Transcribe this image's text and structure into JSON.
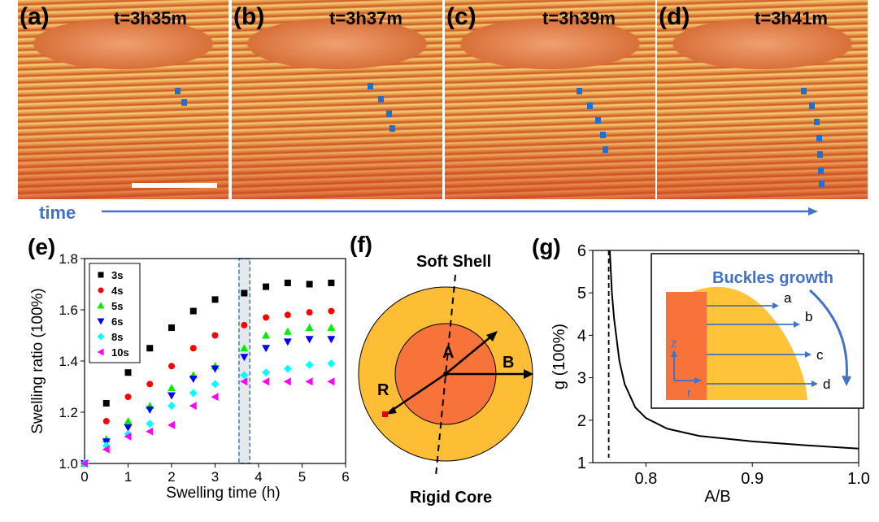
{
  "photos": [
    {
      "label": "(a)",
      "time": "t=3h35m"
    },
    {
      "label": "(b)",
      "time": "t=3h37m"
    },
    {
      "label": "(c)",
      "time": "t=3h39m"
    },
    {
      "label": "(d)",
      "time": "t=3h41m"
    }
  ],
  "time_arrow": {
    "label": "time",
    "color": "#4472c4"
  },
  "panel_f": {
    "label": "(f)",
    "soft_shell": "Soft Shell",
    "rigid_core": "Rigid Core",
    "A": "A",
    "B": "B",
    "R": "R",
    "shell_color": "#fdbd35",
    "core_color": "#f7733a"
  },
  "chart_data": [
    {
      "panel": "(e)",
      "type": "scatter",
      "xlabel": "Swelling time (h)",
      "ylabel": "Swelling ratio (100%)",
      "xlim": [
        0,
        6
      ],
      "ylim": [
        1.0,
        1.8
      ],
      "xticks": [
        "0",
        "1",
        "2",
        "3",
        "4",
        "5",
        "6"
      ],
      "yticks": [
        "1.0",
        "1.2",
        "1.4",
        "1.6",
        "1.8"
      ],
      "legend": "top-left",
      "highlight_band": [
        3.55,
        3.8
      ],
      "x": [
        0,
        0.5,
        1,
        1.5,
        2,
        2.5,
        3,
        3.67,
        4.17,
        4.67,
        5.17,
        5.67
      ],
      "series": [
        {
          "name": "3s",
          "marker": "square",
          "color": "#000000",
          "values": [
            1.0,
            1.235,
            1.355,
            1.45,
            1.53,
            1.595,
            1.64,
            1.665,
            1.69,
            1.705,
            1.7,
            1.705
          ]
        },
        {
          "name": "4s",
          "marker": "circle",
          "color": "#ff0000",
          "values": [
            1.0,
            1.165,
            1.26,
            1.31,
            1.38,
            1.45,
            1.5,
            1.54,
            1.57,
            1.58,
            1.59,
            1.595
          ]
        },
        {
          "name": "5s",
          "marker": "triangle-up",
          "color": "#00ee00",
          "values": [
            1.0,
            1.095,
            1.165,
            1.225,
            1.295,
            1.345,
            1.38,
            1.45,
            1.5,
            1.515,
            1.53,
            1.53
          ]
        },
        {
          "name": "6s",
          "marker": "triangle-down",
          "color": "#0000ff",
          "values": [
            1.0,
            1.085,
            1.14,
            1.21,
            1.265,
            1.33,
            1.37,
            1.415,
            1.45,
            1.475,
            1.485,
            1.485
          ]
        },
        {
          "name": "8s",
          "marker": "diamond",
          "color": "#00ffff",
          "values": [
            1.0,
            1.07,
            1.115,
            1.155,
            1.225,
            1.275,
            1.31,
            1.345,
            1.355,
            1.37,
            1.385,
            1.39
          ]
        },
        {
          "name": "10s",
          "marker": "triangle-left",
          "color": "#ff00ff",
          "values": [
            1.0,
            1.055,
            1.105,
            1.125,
            1.15,
            1.225,
            1.26,
            1.32,
            1.32,
            1.32,
            1.32,
            1.32
          ]
        }
      ]
    },
    {
      "panel": "(g)",
      "type": "line",
      "xlabel": "A/B",
      "ylabel": "g (100%)",
      "xlim": [
        0.75,
        1.0
      ],
      "ylim": [
        1,
        6
      ],
      "xticks": [
        "0.8",
        "0.9",
        "1.0"
      ],
      "yticks": [
        "1",
        "2",
        "3",
        "4",
        "5",
        "6"
      ],
      "asymptote_x": 0.765,
      "x": [
        0.766,
        0.768,
        0.77,
        0.775,
        0.78,
        0.79,
        0.8,
        0.82,
        0.85,
        0.9,
        0.95,
        1.0
      ],
      "values": [
        6.0,
        5.0,
        4.4,
        3.4,
        2.85,
        2.3,
        2.05,
        1.8,
        1.63,
        1.5,
        1.41,
        1.33
      ],
      "inset": {
        "title": "Buckles growth",
        "labels": [
          "a",
          "b",
          "c",
          "d"
        ],
        "axis_z": "z",
        "axis_r": "r"
      }
    }
  ]
}
